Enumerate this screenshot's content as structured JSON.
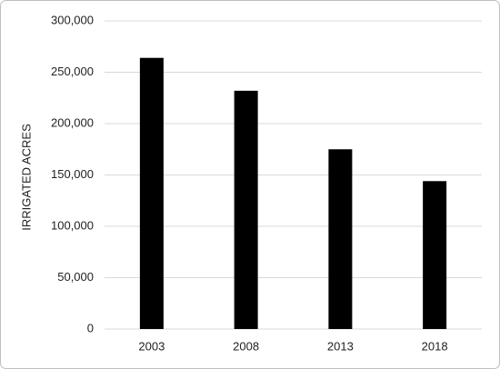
{
  "chart_data": {
    "type": "bar",
    "y_label": "IRRIGATED ACRES",
    "categories": [
      "2003",
      "2008",
      "2013",
      "2018"
    ],
    "values": [
      264000,
      232000,
      175000,
      144000
    ],
    "color": "#000000",
    "ylim": [
      0,
      300000
    ],
    "yticks": [
      0,
      {
        "value": 50000,
        "label": "50,000"
      },
      {
        "value": 100000,
        "label": "100,000"
      },
      {
        "value": 150000,
        "label": "150,000"
      },
      {
        "value": 200000,
        "label": "200,000"
      },
      {
        "value": 250000,
        "label": "250,000"
      },
      {
        "value": 300000,
        "label": "300,000"
      }
    ],
    "grid": true
  }
}
